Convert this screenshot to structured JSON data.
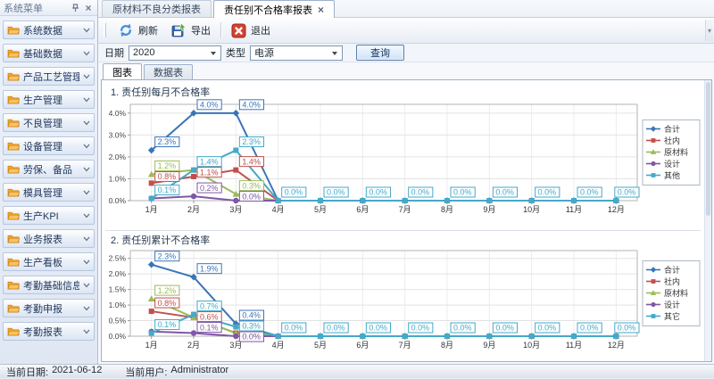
{
  "sidebar": {
    "title": "系统菜单",
    "items": [
      "系统数据",
      "基础数据",
      "产品工艺管理",
      "生产管理",
      "不良管理",
      "设备管理",
      "劳保、备品",
      "模具管理",
      "生产KPI",
      "业务报表",
      "生产看板",
      "考勤基础信息",
      "考勤申报",
      "考勤报表"
    ]
  },
  "tabs": [
    {
      "label": "原材料不良分类报表",
      "active": false
    },
    {
      "label": "责任别不合格率报表",
      "active": true,
      "close": "×"
    }
  ],
  "toolbar": {
    "refresh": "刷新",
    "export": "导出",
    "exit": "退出"
  },
  "filters": {
    "date_label": "日期",
    "date_value": "2020",
    "type_label": "类型",
    "type_value": "电源",
    "query": "查询"
  },
  "view_tabs": [
    {
      "label": "图表",
      "active": true
    },
    {
      "label": "数据表",
      "active": false
    }
  ],
  "statusbar": {
    "date_label": "当前日期:",
    "date": "2021-06-12",
    "user_label": "当前用户:",
    "user": "Administrator"
  },
  "chart_data": [
    {
      "type": "line",
      "title": "1. 责任别每月不合格率",
      "categories": [
        "1月",
        "2月",
        "3月",
        "4月",
        "5月",
        "6月",
        "7月",
        "8月",
        "9月",
        "10月",
        "11月",
        "12月"
      ],
      "ylim": [
        0,
        4
      ],
      "yticks": [
        "0.0%",
        "1.0%",
        "2.0%",
        "3.0%",
        "4.0%"
      ],
      "grid": true,
      "legend_position": "right",
      "series": [
        {
          "name": "合计",
          "marker": "diamond",
          "color": "#3A74B8",
          "values": [
            2.3,
            4.0,
            4.0,
            0,
            0,
            0,
            0,
            0,
            0,
            0,
            0,
            0
          ]
        },
        {
          "name": "社内",
          "marker": "square",
          "color": "#C0504D",
          "values": [
            0.8,
            1.1,
            1.4,
            0,
            0,
            0,
            0,
            0,
            0,
            0,
            0,
            0
          ]
        },
        {
          "name": "原材料",
          "marker": "triangle",
          "color": "#9BBB59",
          "values": [
            1.2,
            1.4,
            0.3,
            0,
            0,
            0,
            0,
            0,
            0,
            0,
            0,
            0
          ]
        },
        {
          "name": "设计",
          "marker": "circle",
          "color": "#7E57A5",
          "values": [
            0.1,
            0.2,
            0.0,
            0,
            0,
            0,
            0,
            0,
            0,
            0,
            0,
            0
          ]
        },
        {
          "name": "其他",
          "marker": "square",
          "color": "#45A9C9",
          "values": [
            0.1,
            1.4,
            2.3,
            0,
            0,
            0,
            0,
            0,
            0,
            0,
            0,
            0
          ]
        }
      ],
      "point_labels": [
        {
          "m": 0,
          "s": "合计",
          "t": "2.3%"
        },
        {
          "m": 0,
          "s": "原材料",
          "t": "1.2%"
        },
        {
          "m": 0,
          "s": "社内",
          "t": "0.8%"
        },
        {
          "m": 0,
          "s": "其他",
          "t": "0.1%"
        },
        {
          "m": 1,
          "s": "合计",
          "t": "4.0%"
        },
        {
          "m": 1,
          "s": "其他",
          "t": "1.4%"
        },
        {
          "m": 1,
          "s": "社内",
          "t": "1.1%"
        },
        {
          "m": 1,
          "s": "设计",
          "t": "0.2%"
        },
        {
          "m": 2,
          "s": "合计",
          "t": "4.0%"
        },
        {
          "m": 2,
          "s": "其他",
          "t": "2.3%"
        },
        {
          "m": 2,
          "s": "社内",
          "t": "1.4%"
        },
        {
          "m": 2,
          "s": "原材料",
          "t": "0.3%"
        },
        {
          "m": 2,
          "s": "设计",
          "t": "0.0%"
        },
        {
          "m": 3,
          "s": "其他",
          "t": "0.0%"
        },
        {
          "m": 4,
          "s": "其他",
          "t": "0.0%"
        },
        {
          "m": 5,
          "s": "其他",
          "t": "0.0%"
        },
        {
          "m": 6,
          "s": "其他",
          "t": "0.0%"
        },
        {
          "m": 7,
          "s": "其他",
          "t": "0.0%"
        },
        {
          "m": 8,
          "s": "其他",
          "t": "0.0%"
        },
        {
          "m": 9,
          "s": "其他",
          "t": "0.0%"
        },
        {
          "m": 10,
          "s": "其他",
          "t": "0.0%"
        },
        {
          "m": 11,
          "s": "其他",
          "t": "0.0%"
        }
      ]
    },
    {
      "type": "line",
      "title": "2. 责任别累计不合格率",
      "categories": [
        "1月",
        "2月",
        "3月",
        "4月",
        "5月",
        "6月",
        "7月",
        "8月",
        "9月",
        "10月",
        "11月",
        "12月"
      ],
      "ylim": [
        0,
        2.5
      ],
      "yticks": [
        "0.0%",
        "0.5%",
        "1.0%",
        "1.5%",
        "2.0%",
        "2.5%"
      ],
      "grid": true,
      "legend_position": "right",
      "series": [
        {
          "name": "合计",
          "marker": "diamond",
          "color": "#3A74B8",
          "values": [
            2.3,
            1.9,
            0.4,
            0,
            0,
            0,
            0,
            0,
            0,
            0,
            0,
            0
          ]
        },
        {
          "name": "社内",
          "marker": "square",
          "color": "#C0504D",
          "values": [
            0.8,
            0.6,
            0.1,
            0,
            0,
            0,
            0,
            0,
            0,
            0,
            0,
            0
          ]
        },
        {
          "name": "原材料",
          "marker": "triangle",
          "color": "#9BBB59",
          "values": [
            1.2,
            0.6,
            0.1,
            0,
            0,
            0,
            0,
            0,
            0,
            0,
            0,
            0
          ]
        },
        {
          "name": "设计",
          "marker": "circle",
          "color": "#7E57A5",
          "values": [
            0.15,
            0.1,
            0.0,
            0,
            0,
            0,
            0,
            0,
            0,
            0,
            0,
            0
          ]
        },
        {
          "name": "其它",
          "marker": "square",
          "color": "#45A9C9",
          "values": [
            0.1,
            0.7,
            0.3,
            0,
            0,
            0,
            0,
            0,
            0,
            0,
            0,
            0
          ]
        }
      ],
      "point_labels": [
        {
          "m": 0,
          "s": "合计",
          "t": "2.3%"
        },
        {
          "m": 0,
          "s": "原材料",
          "t": "1.2%"
        },
        {
          "m": 0,
          "s": "社内",
          "t": "0.8%"
        },
        {
          "m": 0,
          "s": "其它",
          "t": "0.1%"
        },
        {
          "m": 1,
          "s": "合计",
          "t": "1.9%"
        },
        {
          "m": 1,
          "s": "其它",
          "t": "0.7%"
        },
        {
          "m": 1,
          "s": "社内",
          "t": "0.6%"
        },
        {
          "m": 1,
          "s": "设计",
          "t": "0.1%"
        },
        {
          "m": 2,
          "s": "合计",
          "t": "0.4%"
        },
        {
          "m": 2,
          "s": "其它",
          "t": "0.3%"
        },
        {
          "m": 2,
          "s": "设计",
          "t": "0.0%"
        },
        {
          "m": 3,
          "s": "其它",
          "t": "0.0%"
        },
        {
          "m": 4,
          "s": "其它",
          "t": "0.0%"
        },
        {
          "m": 5,
          "s": "其它",
          "t": "0.0%"
        },
        {
          "m": 6,
          "s": "其它",
          "t": "0.0%"
        },
        {
          "m": 7,
          "s": "其它",
          "t": "0.0%"
        },
        {
          "m": 8,
          "s": "其它",
          "t": "0.0%"
        },
        {
          "m": 9,
          "s": "其它",
          "t": "0.0%"
        },
        {
          "m": 10,
          "s": "其它",
          "t": "0.0%"
        },
        {
          "m": 11,
          "s": "其它",
          "t": "0.0%"
        }
      ]
    }
  ]
}
